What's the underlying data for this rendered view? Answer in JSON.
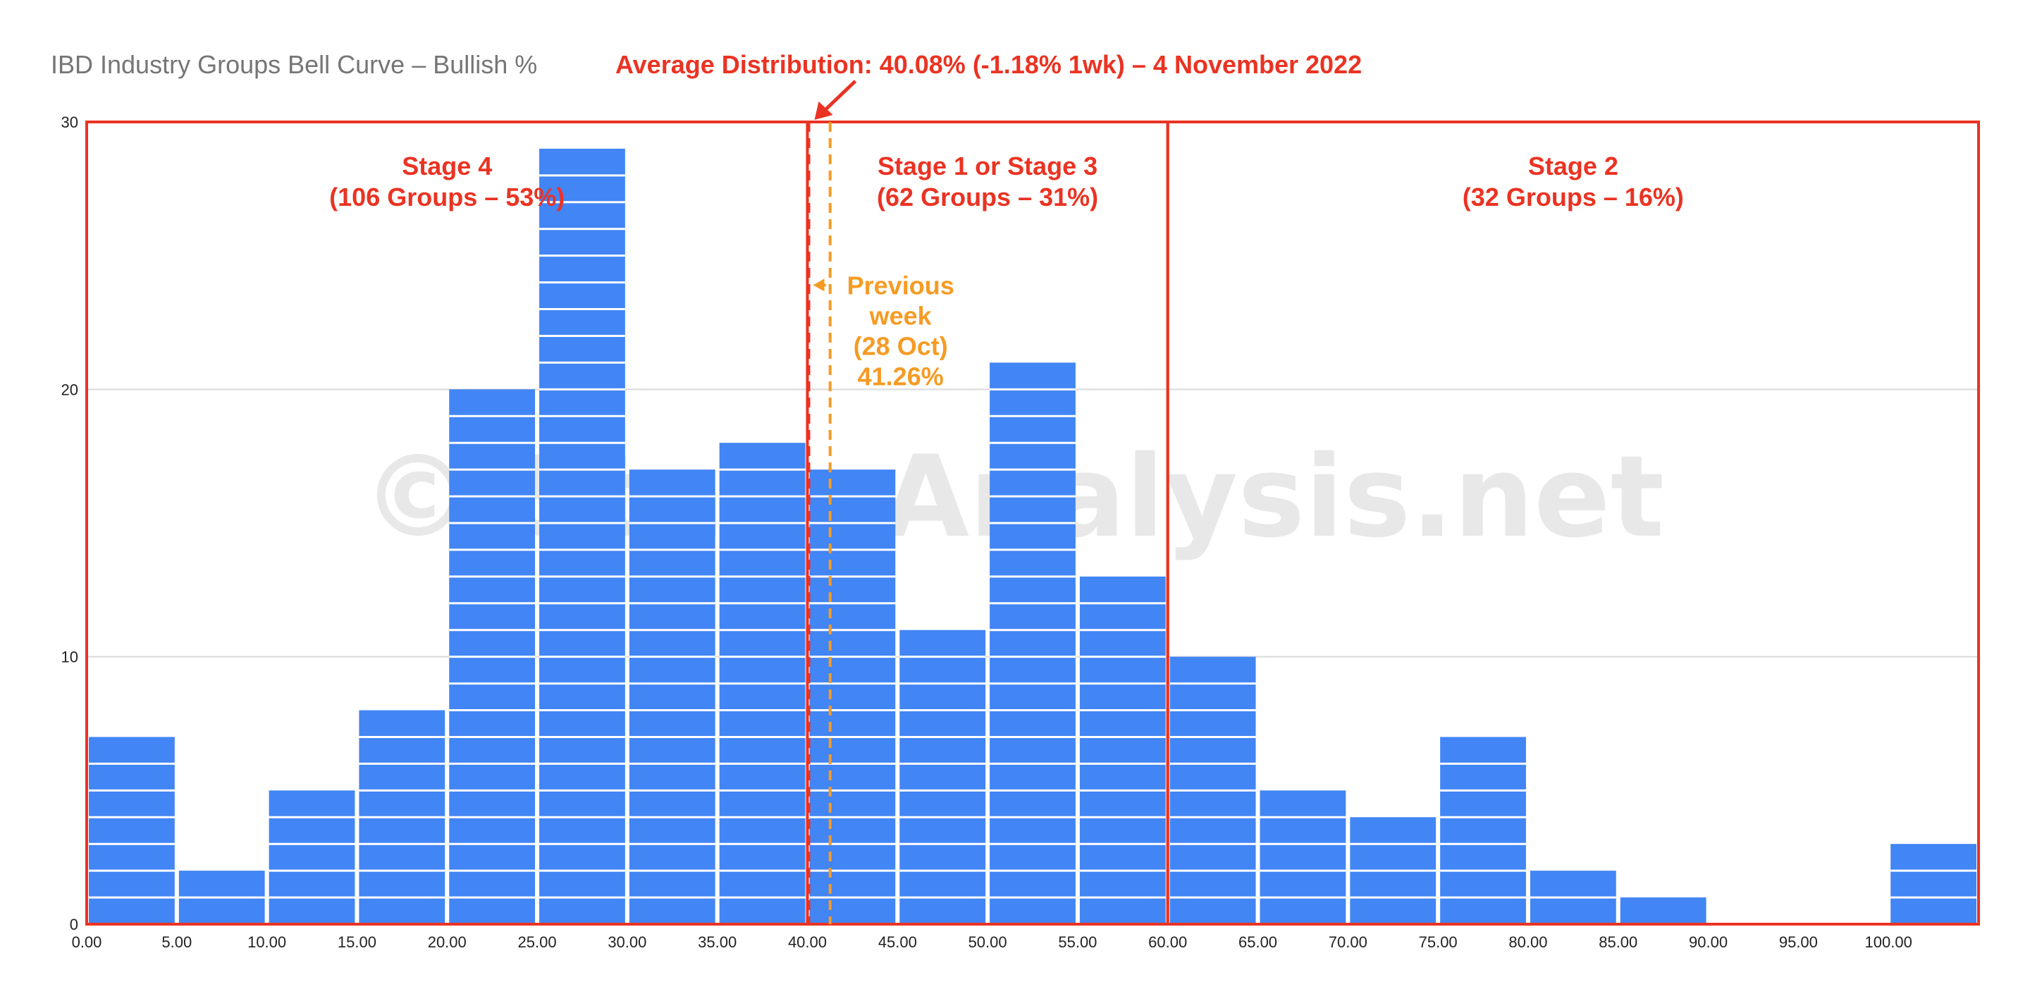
{
  "chart_data": {
    "type": "bar",
    "title": "IBD Industry Groups Bell Curve – Bullish %",
    "headline": "Average Distribution: 40.08% (-1.18% 1wk) – 4 November 2022",
    "watermark": "© StageAnalysis.net",
    "x_ticks": [
      "0.00",
      "5.00",
      "10.00",
      "15.00",
      "20.00",
      "25.00",
      "30.00",
      "35.00",
      "40.00",
      "45.00",
      "50.00",
      "55.00",
      "60.00",
      "65.00",
      "70.00",
      "75.00",
      "80.00",
      "85.00",
      "90.00",
      "95.00",
      "100.00"
    ],
    "y_ticks": [
      "0",
      "10",
      "20",
      "30"
    ],
    "bins": [
      {
        "from": 0,
        "to": 5,
        "value": 7
      },
      {
        "from": 5,
        "to": 10,
        "value": 2
      },
      {
        "from": 10,
        "to": 15,
        "value": 5
      },
      {
        "from": 15,
        "to": 20,
        "value": 8
      },
      {
        "from": 20,
        "to": 25,
        "value": 20
      },
      {
        "from": 25,
        "to": 30,
        "value": 29
      },
      {
        "from": 30,
        "to": 35,
        "value": 17
      },
      {
        "from": 35,
        "to": 40,
        "value": 18
      },
      {
        "from": 40,
        "to": 45,
        "value": 17
      },
      {
        "from": 45,
        "to": 50,
        "value": 11
      },
      {
        "from": 50,
        "to": 55,
        "value": 21
      },
      {
        "from": 55,
        "to": 60,
        "value": 13
      },
      {
        "from": 60,
        "to": 65,
        "value": 10
      },
      {
        "from": 65,
        "to": 70,
        "value": 5
      },
      {
        "from": 70,
        "to": 75,
        "value": 4
      },
      {
        "from": 75,
        "to": 80,
        "value": 7
      },
      {
        "from": 80,
        "to": 85,
        "value": 2
      },
      {
        "from": 85,
        "to": 90,
        "value": 1
      },
      {
        "from": 90,
        "to": 95,
        "value": 0
      },
      {
        "from": 95,
        "to": 100,
        "value": 0
      },
      {
        "from": 100,
        "to": 105,
        "value": 3
      }
    ],
    "xlim": [
      0,
      105
    ],
    "ylim": [
      0,
      30
    ],
    "grid": true,
    "legend": "none",
    "zones": [
      {
        "from": 0,
        "to": 40,
        "lines": [
          "Stage 4",
          "(106 Groups – 53%)"
        ]
      },
      {
        "from": 40,
        "to": 60,
        "lines": [
          "Stage 1 or Stage 3",
          "(62 Groups – 31%)"
        ]
      },
      {
        "from": 60,
        "to": 105,
        "lines": [
          "Stage 2",
          "(32 Groups – 16%)"
        ]
      }
    ],
    "current_average": 40.08,
    "previous_average": 41.26,
    "previous_label": [
      "Previous",
      "week",
      "(28 Oct)",
      "41.26%"
    ],
    "colors": {
      "bar": "#4285f4",
      "bar_divider": "#ffffff",
      "zone": "#ea3323",
      "current_line": "#ea3323",
      "previous_line": "#f59b24",
      "grid": "#d9d9d9",
      "title": "#757575"
    }
  }
}
